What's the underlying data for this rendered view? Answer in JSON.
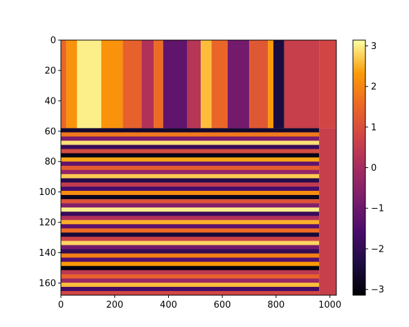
{
  "chart_data": {
    "type": "heatmap",
    "title": "",
    "xlabel": "",
    "ylabel": "",
    "colormap": "inferno",
    "xlim": [
      0,
      1024
    ],
    "ylim": [
      168,
      0
    ],
    "y_inverted": true,
    "x_ticks": [
      {
        "value": 0,
        "label": "0"
      },
      {
        "value": 200,
        "label": "200"
      },
      {
        "value": 400,
        "label": "400"
      },
      {
        "value": 600,
        "label": "600"
      },
      {
        "value": 800,
        "label": "800"
      },
      {
        "value": 1000,
        "label": "1000"
      }
    ],
    "y_ticks": [
      {
        "value": 0,
        "label": "0"
      },
      {
        "value": 20,
        "label": "20"
      },
      {
        "value": 40,
        "label": "40"
      },
      {
        "value": 60,
        "label": "60"
      },
      {
        "value": 80,
        "label": "80"
      },
      {
        "value": 100,
        "label": "100"
      },
      {
        "value": 120,
        "label": "120"
      },
      {
        "value": 140,
        "label": "140"
      },
      {
        "value": 160,
        "label": "160"
      }
    ],
    "colorbar": {
      "range": [
        -3.1416,
        3.1416
      ],
      "ticks": [
        {
          "value": 3,
          "label": "3"
        },
        {
          "value": 2,
          "label": "2"
        },
        {
          "value": 1,
          "label": "1"
        },
        {
          "value": 0,
          "label": "0"
        },
        {
          "value": -1,
          "label": "−1"
        },
        {
          "value": -2,
          "label": "−2"
        },
        {
          "value": -3,
          "label": "−3"
        }
      ]
    },
    "upper_region": {
      "row_range": [
        0,
        58
      ],
      "description_free_bands": [
        {
          "x": [
            0,
            20
          ],
          "value": 1.5
        },
        {
          "x": [
            20,
            60
          ],
          "value": 2.2
        },
        {
          "x": [
            60,
            150
          ],
          "value": 3.0
        },
        {
          "x": [
            150,
            230
          ],
          "value": 2.2
        },
        {
          "x": [
            230,
            300
          ],
          "value": 1.4
        },
        {
          "x": [
            300,
            345
          ],
          "value": 0.2
        },
        {
          "x": [
            345,
            380
          ],
          "value": 1.6
        },
        {
          "x": [
            380,
            470
          ],
          "value": -1.2
        },
        {
          "x": [
            470,
            520
          ],
          "value": 0.3
        },
        {
          "x": [
            520,
            560
          ],
          "value": 2.6
        },
        {
          "x": [
            560,
            620
          ],
          "value": 1.5
        },
        {
          "x": [
            620,
            700
          ],
          "value": -0.9
        },
        {
          "x": [
            700,
            770
          ],
          "value": 1.2
        },
        {
          "x": [
            770,
            790
          ],
          "value": 2.3
        },
        {
          "x": [
            790,
            830
          ],
          "value": -2.4
        },
        {
          "x": [
            830,
            960
          ],
          "value": 0.6
        },
        {
          "x": [
            960,
            1024
          ],
          "value": 0.8
        }
      ]
    },
    "lower_region": {
      "row_range": [
        58,
        168
      ],
      "pattern": "horizontal streaks across full phase range",
      "streak_values": [
        -2.6,
        1.8,
        -0.8,
        2.9,
        -1.9,
        0.9,
        -2.9,
        2.4,
        -1.2,
        1.3,
        -0.3,
        2.7,
        -2.2,
        0.5,
        -1.6,
        2.1,
        -2.8,
        1.1,
        -0.6,
        3.0,
        -1.9,
        0.2,
        2.5,
        -1.3,
        1.6,
        -2.5,
        0.7,
        2.8,
        -0.9,
        -2.0,
        1.9,
        -1.4,
        2.3,
        -3.0,
        0.4,
        1.4,
        -0.2,
        2.6,
        -1.7,
        0.8
      ]
    }
  }
}
